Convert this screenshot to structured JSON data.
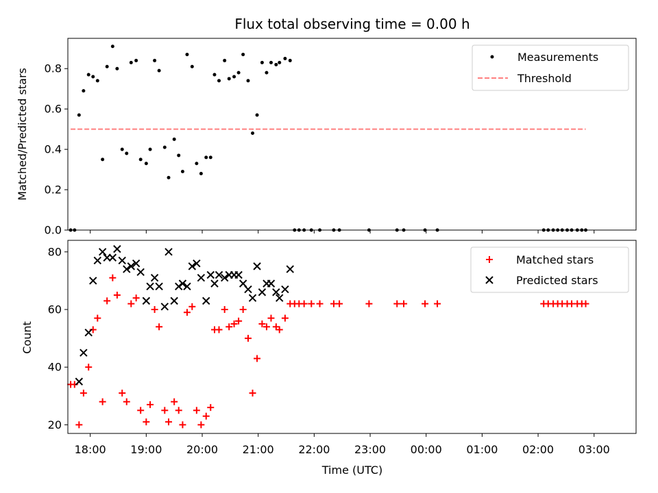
{
  "chart_data": [
    {
      "type": "scatter",
      "title": "Flux total observing time = 0.00 h",
      "ylabel": "Matched/Predicted stars",
      "xlabel": "",
      "xlim": [
        -0.4,
        9.75
      ],
      "ylim": [
        0,
        0.95
      ],
      "yticks": [
        0,
        0.2,
        0.4,
        0.6,
        0.8
      ],
      "ytick_labels": [
        "0.0",
        "0.2",
        "0.4",
        "0.6",
        "0.8"
      ],
      "legend_position": "upper right",
      "series": [
        {
          "name": "Measurements",
          "marker": "dot",
          "color": "#000000",
          "points": [
            [
              -0.35,
              0.0
            ],
            [
              -0.28,
              0.0
            ],
            [
              -0.2,
              0.57
            ],
            [
              -0.12,
              0.69
            ],
            [
              -0.03,
              0.77
            ],
            [
              0.05,
              0.76
            ],
            [
              0.13,
              0.74
            ],
            [
              0.22,
              0.35
            ],
            [
              0.3,
              0.81
            ],
            [
              0.4,
              0.91
            ],
            [
              0.48,
              0.8
            ],
            [
              0.57,
              0.4
            ],
            [
              0.65,
              0.38
            ],
            [
              0.73,
              0.83
            ],
            [
              0.82,
              0.84
            ],
            [
              0.9,
              0.35
            ],
            [
              1.0,
              0.33
            ],
            [
              1.07,
              0.4
            ],
            [
              1.15,
              0.84
            ],
            [
              1.23,
              0.79
            ],
            [
              1.33,
              0.41
            ],
            [
              1.4,
              0.26
            ],
            [
              1.5,
              0.45
            ],
            [
              1.58,
              0.37
            ],
            [
              1.65,
              0.29
            ],
            [
              1.73,
              0.87
            ],
            [
              1.82,
              0.81
            ],
            [
              1.9,
              0.33
            ],
            [
              1.98,
              0.28
            ],
            [
              2.07,
              0.36
            ],
            [
              2.15,
              0.36
            ],
            [
              2.22,
              0.77
            ],
            [
              2.3,
              0.74
            ],
            [
              2.4,
              0.84
            ],
            [
              2.48,
              0.75
            ],
            [
              2.57,
              0.76
            ],
            [
              2.65,
              0.78
            ],
            [
              2.73,
              0.87
            ],
            [
              2.82,
              0.74
            ],
            [
              2.9,
              0.48
            ],
            [
              2.98,
              0.57
            ],
            [
              3.07,
              0.83
            ],
            [
              3.15,
              0.78
            ],
            [
              3.23,
              0.83
            ],
            [
              3.32,
              0.82
            ],
            [
              3.38,
              0.83
            ],
            [
              3.48,
              0.85
            ],
            [
              3.57,
              0.84
            ],
            [
              3.65,
              0.0
            ],
            [
              3.73,
              0.0
            ],
            [
              3.82,
              0.0
            ],
            [
              3.95,
              0.0
            ],
            [
              4.1,
              0.0
            ],
            [
              4.35,
              0.0
            ],
            [
              4.45,
              0.0
            ],
            [
              4.98,
              0.0
            ],
            [
              5.48,
              0.0
            ],
            [
              5.6,
              0.0
            ],
            [
              5.98,
              0.0
            ],
            [
              6.2,
              0.0
            ],
            [
              8.1,
              0.0
            ],
            [
              8.18,
              0.0
            ],
            [
              8.27,
              0.0
            ],
            [
              8.35,
              0.0
            ],
            [
              8.43,
              0.0
            ],
            [
              8.52,
              0.0
            ],
            [
              8.6,
              0.0
            ],
            [
              8.7,
              0.0
            ],
            [
              8.78,
              0.0
            ],
            [
              8.85,
              0.0
            ]
          ]
        },
        {
          "name": "Threshold",
          "marker": "dashed-line",
          "color": "#ff7f7f",
          "x": [
            -0.35,
            8.85
          ],
          "y": [
            0.5,
            0.5
          ]
        }
      ]
    },
    {
      "type": "scatter",
      "title": "",
      "ylabel": "Count",
      "xlabel": "Time (UTC)",
      "xlim": [
        -0.4,
        9.75
      ],
      "ylim": [
        17,
        84
      ],
      "yticks": [
        20,
        40,
        60,
        80
      ],
      "ytick_labels": [
        "20",
        "40",
        "60",
        "80"
      ],
      "xticks": [
        0,
        1,
        2,
        3,
        4,
        5,
        6,
        7,
        8,
        9
      ],
      "xtick_labels": [
        "18:00",
        "19:00",
        "20:00",
        "21:00",
        "22:00",
        "23:00",
        "00:00",
        "01:00",
        "02:00",
        "03:00"
      ],
      "legend_position": "upper right",
      "series": [
        {
          "name": "Matched stars",
          "marker": "plus",
          "color": "#ff0000",
          "points": [
            [
              -0.35,
              34
            ],
            [
              -0.28,
              34
            ],
            [
              -0.2,
              20
            ],
            [
              -0.12,
              31
            ],
            [
              -0.03,
              40
            ],
            [
              0.05,
              53
            ],
            [
              0.13,
              57
            ],
            [
              0.22,
              28
            ],
            [
              0.3,
              63
            ],
            [
              0.4,
              71
            ],
            [
              0.48,
              65
            ],
            [
              0.57,
              31
            ],
            [
              0.65,
              28
            ],
            [
              0.73,
              62
            ],
            [
              0.82,
              64
            ],
            [
              0.9,
              25
            ],
            [
              1.0,
              21
            ],
            [
              1.07,
              27
            ],
            [
              1.15,
              60
            ],
            [
              1.23,
              54
            ],
            [
              1.33,
              25
            ],
            [
              1.4,
              21
            ],
            [
              1.5,
              28
            ],
            [
              1.58,
              25
            ],
            [
              1.65,
              20
            ],
            [
              1.73,
              59
            ],
            [
              1.82,
              61
            ],
            [
              1.9,
              25
            ],
            [
              1.98,
              20
            ],
            [
              2.07,
              23
            ],
            [
              2.15,
              26
            ],
            [
              2.22,
              53
            ],
            [
              2.3,
              53
            ],
            [
              2.4,
              60
            ],
            [
              2.48,
              54
            ],
            [
              2.57,
              55
            ],
            [
              2.65,
              56
            ],
            [
              2.73,
              60
            ],
            [
              2.82,
              50
            ],
            [
              2.9,
              31
            ],
            [
              2.98,
              43
            ],
            [
              3.07,
              55
            ],
            [
              3.15,
              54
            ],
            [
              3.23,
              57
            ],
            [
              3.32,
              54
            ],
            [
              3.38,
              53
            ],
            [
              3.48,
              57
            ],
            [
              3.57,
              62
            ],
            [
              3.65,
              62
            ],
            [
              3.73,
              62
            ],
            [
              3.82,
              62
            ],
            [
              3.95,
              62
            ],
            [
              4.1,
              62
            ],
            [
              4.35,
              62
            ],
            [
              4.45,
              62
            ],
            [
              4.98,
              62
            ],
            [
              5.48,
              62
            ],
            [
              5.6,
              62
            ],
            [
              5.98,
              62
            ],
            [
              6.2,
              62
            ],
            [
              8.1,
              62
            ],
            [
              8.18,
              62
            ],
            [
              8.27,
              62
            ],
            [
              8.35,
              62
            ],
            [
              8.43,
              62
            ],
            [
              8.52,
              62
            ],
            [
              8.6,
              62
            ],
            [
              8.7,
              62
            ],
            [
              8.78,
              62
            ],
            [
              8.85,
              62
            ]
          ]
        },
        {
          "name": "Predicted stars",
          "marker": "x",
          "color": "#000000",
          "points": [
            [
              -0.2,
              35
            ],
            [
              -0.12,
              45
            ],
            [
              -0.03,
              52
            ],
            [
              0.05,
              70
            ],
            [
              0.13,
              77
            ],
            [
              0.22,
              80
            ],
            [
              0.3,
              78
            ],
            [
              0.4,
              78
            ],
            [
              0.48,
              81
            ],
            [
              0.57,
              77
            ],
            [
              0.65,
              74
            ],
            [
              0.73,
              75
            ],
            [
              0.82,
              76
            ],
            [
              0.9,
              73
            ],
            [
              1.0,
              63
            ],
            [
              1.07,
              68
            ],
            [
              1.15,
              71
            ],
            [
              1.23,
              68
            ],
            [
              1.33,
              61
            ],
            [
              1.4,
              80
            ],
            [
              1.5,
              63
            ],
            [
              1.58,
              68
            ],
            [
              1.65,
              69
            ],
            [
              1.73,
              68
            ],
            [
              1.82,
              75
            ],
            [
              1.9,
              76
            ],
            [
              1.98,
              71
            ],
            [
              2.07,
              63
            ],
            [
              2.15,
              72
            ],
            [
              2.22,
              69
            ],
            [
              2.3,
              72
            ],
            [
              2.4,
              71
            ],
            [
              2.48,
              72
            ],
            [
              2.57,
              72
            ],
            [
              2.65,
              72
            ],
            [
              2.73,
              69
            ],
            [
              2.82,
              67
            ],
            [
              2.9,
              64
            ],
            [
              2.98,
              75
            ],
            [
              3.07,
              66
            ],
            [
              3.15,
              69
            ],
            [
              3.23,
              69
            ],
            [
              3.32,
              66
            ],
            [
              3.38,
              64
            ],
            [
              3.48,
              67
            ],
            [
              3.57,
              74
            ]
          ]
        }
      ]
    }
  ]
}
